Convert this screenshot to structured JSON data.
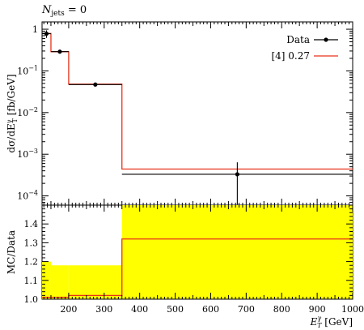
{
  "header": {
    "label": "N_jets = 0"
  },
  "chart_data": {
    "type": "line",
    "xlabel": "E_T^γ [GeV]",
    "xlim": [
      125,
      1000
    ],
    "xticks": [
      "200",
      "300",
      "400",
      "500",
      "600",
      "700",
      "800",
      "900",
      "1000"
    ],
    "main": {
      "ylabel": "dσ/dE_T^γ [fb/GeV]",
      "yscale": "log",
      "ylim": [
        6e-05,
        1.5
      ],
      "ytick_labels": [
        "1",
        "10^-1",
        "10^-2",
        "10^-3",
        "10^-4"
      ],
      "legend": {
        "position": "top-right",
        "entries": [
          "Data",
          "[4] 0.27"
        ]
      },
      "series": [
        {
          "name": "Data",
          "style": "points",
          "color": "#000000",
          "points": [
            {
              "x": 137.5,
              "y": 0.78,
              "xlo": 125,
              "xhi": 150,
              "ylo": 0.62,
              "yhi": 0.94
            },
            {
              "x": 175,
              "y": 0.29,
              "xlo": 150,
              "xhi": 200,
              "ylo": 0.26,
              "yhi": 0.32
            },
            {
              "x": 275,
              "y": 0.047,
              "xlo": 200,
              "xhi": 350,
              "ylo": 0.043,
              "yhi": 0.051
            },
            {
              "x": 675,
              "y": 0.00033,
              "xlo": 350,
              "xhi": 1000,
              "ylo": 6.2e-05,
              "yhi": 0.00064
            }
          ]
        },
        {
          "name": "[4] 0.27",
          "style": "step",
          "color": "#e8331a",
          "bins": [
            {
              "x0": 125,
              "x1": 150,
              "y": 0.79
            },
            {
              "x0": 150,
              "x1": 200,
              "y": 0.29
            },
            {
              "x0": 200,
              "x1": 350,
              "y": 0.048
            },
            {
              "x0": 350,
              "x1": 1000,
              "y": 0.00044
            }
          ]
        }
      ]
    },
    "ratio": {
      "ylabel": "MC/Data",
      "ylim": [
        1.0,
        1.5
      ],
      "yticks": [
        "1.0",
        "1.1",
        "1.2",
        "1.3",
        "1.4"
      ],
      "band_color": "#ffff00",
      "band": [
        {
          "x0": 125,
          "x1": 150,
          "lo": 1.0,
          "hi": 1.2
        },
        {
          "x0": 150,
          "x1": 200,
          "lo": 1.0,
          "hi": 1.18
        },
        {
          "x0": 200,
          "x1": 350,
          "lo": 1.0,
          "hi": 1.18
        },
        {
          "x0": 350,
          "x1": 1000,
          "lo": 1.0,
          "hi": 1.5
        }
      ],
      "step": [
        {
          "x0": 125,
          "x1": 150,
          "y": 1.01
        },
        {
          "x0": 150,
          "x1": 200,
          "y": 1.01
        },
        {
          "x0": 200,
          "x1": 350,
          "y": 1.02
        },
        {
          "x0": 350,
          "x1": 1000,
          "y": 1.32
        }
      ]
    }
  }
}
